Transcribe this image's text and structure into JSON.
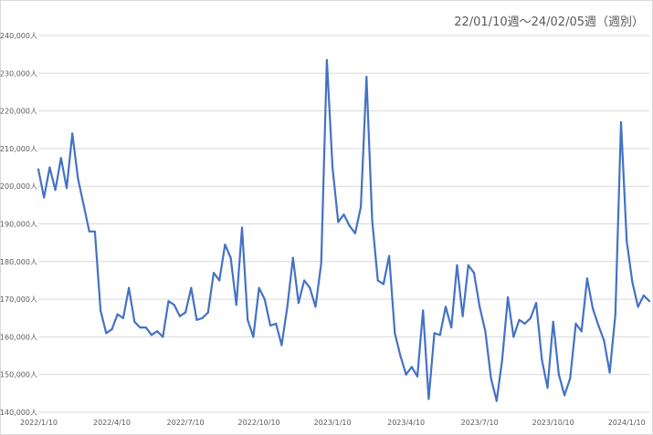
{
  "chart_data": {
    "type": "line",
    "subtitle": "22/01/10週～24/02/05週（週別）",
    "title": "",
    "xlabel": "",
    "ylabel": "",
    "ylim": [
      140000,
      240000
    ],
    "y_ticks": [
      "140,000人",
      "150,000人",
      "160,000人",
      "170,000人",
      "180,000人",
      "190,000人",
      "200,000人",
      "210,000人",
      "220,000人",
      "230,000人",
      "240,000人"
    ],
    "x_ticks": [
      "2022/1/10",
      "2022/4/10",
      "2022/7/10",
      "2022/10/10",
      "2023/1/10",
      "2023/4/10",
      "2023/7/10",
      "2023/10/10",
      "2024/1/10"
    ],
    "grid": true,
    "legend": "none",
    "line_color": "#4472c4",
    "series": [
      {
        "values": [
          204500,
          197000,
          205000,
          199000,
          207500,
          199500,
          214000,
          202000,
          195000,
          188000,
          188000,
          167000,
          161000,
          162000,
          166000,
          165000,
          173000,
          164000,
          162500,
          162500,
          160500,
          161500,
          160000,
          169500,
          168500,
          165500,
          166500,
          173000,
          164500,
          165000,
          166500,
          177000,
          175000,
          184500,
          181000,
          168500,
          189000,
          164500,
          160000,
          173000,
          170000,
          163000,
          163500,
          157800,
          168000,
          181000,
          169000,
          175000,
          173000,
          168000,
          179500,
          233500,
          205000,
          190500,
          192500,
          189500,
          187500,
          194500,
          229000,
          191000,
          175000,
          174000,
          181500,
          161000,
          155000,
          150000,
          152000,
          149500,
          167000,
          143500,
          161000,
          160500,
          168000,
          162500,
          179000,
          165500,
          179000,
          177000,
          168000,
          161500,
          149000,
          143000,
          154000,
          170500,
          160000,
          164500,
          163500,
          165000,
          169000,
          154000,
          146500,
          164000,
          150000,
          144500,
          149000,
          163500,
          161500,
          175500,
          167500,
          163000,
          159000,
          150500,
          166000,
          217000,
          185500,
          174500,
          168000,
          171000,
          169500
        ]
      }
    ]
  }
}
